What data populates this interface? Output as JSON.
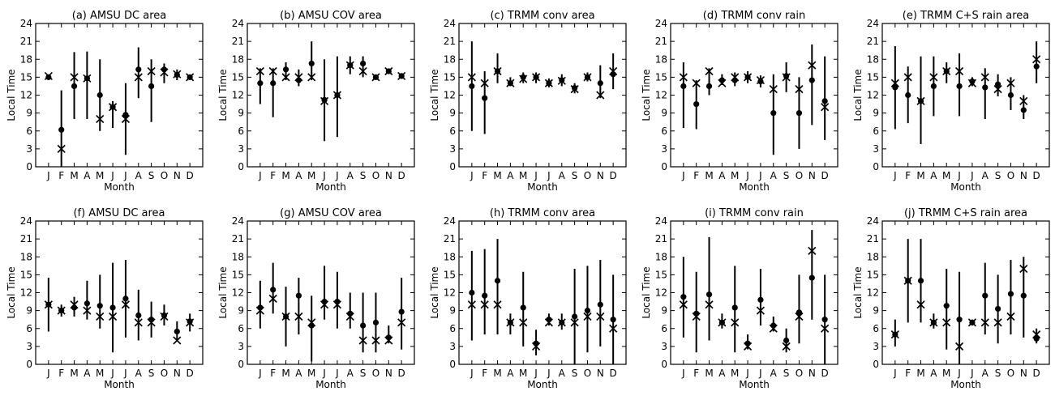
{
  "figure": {
    "panel_count": 10,
    "layout": "2 rows x 5 columns"
  },
  "chart_data": [
    {
      "type": "scatter",
      "title": "(a) AMSU DC area",
      "xlabel": "Month",
      "ylabel": "Local Time",
      "categories": [
        "J",
        "F",
        "M",
        "A",
        "M",
        "J",
        "J",
        "A",
        "S",
        "O",
        "N",
        "D"
      ],
      "ylim": [
        0,
        24
      ],
      "yticks": [
        0,
        3,
        6,
        9,
        12,
        15,
        18,
        21,
        24
      ],
      "series": [
        {
          "marker": "dot",
          "values": [
            15,
            6.2,
            13.5,
            14.8,
            12,
            10,
            8.7,
            16.3,
            13.5,
            16.3,
            15.4,
            15
          ],
          "low": [
            null,
            0,
            8,
            8,
            6,
            6.5,
            2,
            11.5,
            7.5,
            14,
            14.5,
            null
          ],
          "high": [
            null,
            12.8,
            19.2,
            19.3,
            18,
            11,
            14,
            20,
            18,
            17.3,
            16.3,
            null
          ]
        },
        {
          "marker": "x",
          "values": [
            15.2,
            3,
            15,
            14.8,
            8,
            10,
            8,
            15,
            16,
            15.8,
            15.5,
            15
          ]
        }
      ]
    },
    {
      "type": "scatter",
      "title": "(b) AMSU COV area",
      "xlabel": "Month",
      "ylabel": "Local Time",
      "categories": [
        "J",
        "F",
        "M",
        "A",
        "M",
        "J",
        "J",
        "A",
        "S",
        "O",
        "N",
        "D"
      ],
      "ylim": [
        0,
        24
      ],
      "yticks": [
        0,
        3,
        6,
        9,
        12,
        15,
        18,
        21,
        24
      ],
      "series": [
        {
          "marker": "dot",
          "values": [
            14,
            14,
            16.3,
            14.5,
            17.3,
            11.2,
            12,
            17,
            17.3,
            15,
            16,
            15.2
          ],
          "low": [
            10.5,
            8.3,
            14.5,
            13.5,
            14.5,
            4.3,
            5,
            15.5,
            15,
            null,
            null,
            null
          ],
          "high": [
            16.5,
            16.5,
            17.5,
            16.3,
            21,
            18,
            18.5,
            18.5,
            18.5,
            null,
            null,
            null
          ]
        },
        {
          "marker": "x",
          "values": [
            16,
            16,
            15,
            15,
            15,
            11,
            12,
            17,
            16,
            15,
            16,
            15.2
          ]
        }
      ]
    },
    {
      "type": "scatter",
      "title": "(c) TRMM conv area",
      "xlabel": "Month",
      "ylabel": "Local Time",
      "categories": [
        "J",
        "F",
        "M",
        "A",
        "M",
        "J",
        "J",
        "A",
        "S",
        "O",
        "N",
        "D"
      ],
      "ylim": [
        0,
        24
      ],
      "yticks": [
        0,
        3,
        6,
        9,
        12,
        15,
        18,
        21,
        24
      ],
      "series": [
        {
          "marker": "dot",
          "values": [
            13.5,
            11.5,
            16,
            14,
            15,
            15,
            14,
            14.5,
            13.2,
            15,
            14,
            15.5
          ],
          "low": [
            6,
            5.5,
            14,
            13.5,
            14,
            14,
            13.3,
            13.5,
            12.3,
            14.3,
            11.5,
            13
          ],
          "high": [
            21,
            16,
            19,
            15,
            15.8,
            15.8,
            14.8,
            15.5,
            14,
            15.8,
            17,
            19
          ]
        },
        {
          "marker": "x",
          "values": [
            15,
            14,
            16,
            14,
            14.7,
            15,
            14,
            14.4,
            13,
            15,
            12,
            16
          ]
        }
      ]
    },
    {
      "type": "scatter",
      "title": "(d) TRMM conv rain",
      "xlabel": "Month",
      "ylabel": "Local Time",
      "categories": [
        "J",
        "F",
        "M",
        "A",
        "M",
        "J",
        "J",
        "A",
        "S",
        "O",
        "N",
        "D"
      ],
      "ylim": [
        0,
        24
      ],
      "yticks": [
        0,
        3,
        6,
        9,
        12,
        15,
        18,
        21,
        24
      ],
      "series": [
        {
          "marker": "dot",
          "values": [
            13.5,
            10.5,
            13.5,
            14.5,
            14.5,
            15,
            14.3,
            9,
            15.2,
            9,
            14.5,
            11
          ],
          "low": [
            6.5,
            6.3,
            12,
            13.7,
            13.5,
            14,
            13.3,
            2,
            12.5,
            3,
            7,
            4.5
          ],
          "high": [
            17.5,
            14.5,
            16.5,
            15.5,
            15.8,
            16,
            15.3,
            15.5,
            17.5,
            15,
            20.5,
            18.5
          ]
        },
        {
          "marker": "x",
          "values": [
            15,
            14,
            16,
            14,
            15,
            15,
            14.5,
            13,
            15,
            13,
            17,
            10
          ]
        }
      ]
    },
    {
      "type": "scatter",
      "title": "(e) TRMM C+S rain area",
      "xlabel": "Month",
      "ylabel": "Local Time",
      "categories": [
        "J",
        "F",
        "M",
        "A",
        "M",
        "J",
        "J",
        "A",
        "S",
        "O",
        "N",
        "D"
      ],
      "ylim": [
        0,
        24
      ],
      "yticks": [
        0,
        3,
        6,
        9,
        12,
        15,
        18,
        21,
        24
      ],
      "series": [
        {
          "marker": "dot",
          "values": [
            13.3,
            12,
            11,
            13.5,
            16,
            13.5,
            14.3,
            13.3,
            13.8,
            12,
            9.5,
            16.8
          ],
          "low": [
            6.3,
            7.3,
            3.8,
            8.5,
            14,
            8.5,
            13.5,
            8,
            11.8,
            9.5,
            8,
            14
          ],
          "high": [
            20.2,
            16.8,
            18.5,
            18.5,
            17.5,
            19,
            15,
            16.5,
            15.5,
            15,
            12,
            21
          ]
        },
        {
          "marker": "x",
          "values": [
            14,
            15,
            11,
            15,
            16,
            16,
            14,
            15,
            13,
            14,
            11,
            18
          ]
        }
      ]
    },
    {
      "type": "scatter",
      "title": "(f) AMSU DC area",
      "xlabel": "Month",
      "ylabel": "Local Time",
      "categories": [
        "J",
        "F",
        "M",
        "A",
        "M",
        "J",
        "J",
        "A",
        "S",
        "O",
        "N",
        "D"
      ],
      "ylim": [
        0,
        24
      ],
      "yticks": [
        0,
        3,
        6,
        9,
        12,
        15,
        18,
        21,
        24
      ],
      "series": [
        {
          "marker": "dot",
          "values": [
            10,
            9,
            9.5,
            10.2,
            9.8,
            9.5,
            11,
            8.2,
            7.5,
            8.2,
            5.5,
            7.2
          ],
          "low": [
            5.5,
            8,
            8,
            7.5,
            6,
            2,
            4.5,
            4,
            4.5,
            6.5,
            4,
            5.5
          ],
          "high": [
            14.5,
            10,
            11.3,
            14,
            15,
            17,
            17.5,
            12.5,
            10.5,
            10,
            7.2,
            8.5
          ]
        },
        {
          "marker": "x",
          "values": [
            10,
            9,
            10,
            9,
            8,
            8,
            10,
            7,
            7,
            8,
            4,
            7
          ]
        }
      ]
    },
    {
      "type": "scatter",
      "title": "(g) AMSU COV area",
      "xlabel": "Month",
      "ylabel": "Local Time",
      "categories": [
        "J",
        "F",
        "M",
        "A",
        "M",
        "J",
        "J",
        "A",
        "S",
        "O",
        "N",
        "D"
      ],
      "ylim": [
        0,
        24
      ],
      "yticks": [
        0,
        3,
        6,
        9,
        12,
        15,
        18,
        21,
        24
      ],
      "series": [
        {
          "marker": "dot",
          "values": [
            9.5,
            12.5,
            8,
            11.5,
            6.5,
            10.5,
            10.5,
            8.5,
            6.5,
            7,
            4.5,
            8.8
          ],
          "low": [
            6,
            8.5,
            3,
            5,
            0.5,
            7.5,
            6,
            6,
            2,
            2,
            3.5,
            2.5
          ],
          "high": [
            14,
            17,
            13,
            14.5,
            11.5,
            16.5,
            15.5,
            12,
            12,
            12,
            6.5,
            14.5
          ]
        },
        {
          "marker": "x",
          "values": [
            9,
            11,
            8,
            8,
            7,
            10,
            10,
            8,
            4,
            4,
            4,
            7
          ]
        }
      ]
    },
    {
      "type": "scatter",
      "title": "(h) TRMM conv area",
      "xlabel": "Month",
      "ylabel": "Local Time",
      "categories": [
        "J",
        "F",
        "M",
        "A",
        "M",
        "J",
        "J",
        "A",
        "S",
        "O",
        "N",
        "D"
      ],
      "ylim": [
        0,
        24
      ],
      "yticks": [
        0,
        3,
        6,
        9,
        12,
        15,
        18,
        21,
        24
      ],
      "series": [
        {
          "marker": "dot",
          "values": [
            12,
            11.5,
            14,
            7,
            9.5,
            3.5,
            7.5,
            7,
            8,
            9,
            10,
            7.5
          ],
          "low": [
            4,
            5,
            5,
            5,
            3,
            1.5,
            6.5,
            5.8,
            0,
            2,
            3,
            0
          ],
          "high": [
            19,
            19.3,
            21,
            8.5,
            15.5,
            5.8,
            8.5,
            8.5,
            16,
            16.5,
            17.5,
            15
          ]
        },
        {
          "marker": "x",
          "values": [
            10,
            10,
            10,
            7,
            7,
            3,
            7,
            7,
            7,
            8,
            8,
            6
          ]
        }
      ]
    },
    {
      "type": "scatter",
      "title": "(i) TRMM conv rain",
      "xlabel": "Month",
      "ylabel": "Local Time",
      "categories": [
        "J",
        "F",
        "M",
        "A",
        "M",
        "J",
        "J",
        "A",
        "S",
        "O",
        "N",
        "D"
      ],
      "ylim": [
        0,
        24
      ],
      "yticks": [
        0,
        3,
        6,
        9,
        12,
        15,
        18,
        21,
        24
      ],
      "series": [
        {
          "marker": "dot",
          "values": [
            11.3,
            8.5,
            11.7,
            7,
            9.5,
            3.5,
            10.8,
            6.5,
            4,
            8.7,
            14.5,
            7.5
          ],
          "low": [
            4.5,
            2,
            4,
            6,
            2,
            2.5,
            6.5,
            5.5,
            2,
            3.5,
            7.5,
            0
          ],
          "high": [
            18,
            15.5,
            21.3,
            8.5,
            16.5,
            5,
            16,
            8,
            6,
            15,
            22.5,
            15
          ]
        },
        {
          "marker": "x",
          "values": [
            10,
            8,
            10,
            7,
            7,
            3,
            9,
            6,
            3,
            8,
            19,
            6
          ]
        }
      ]
    },
    {
      "type": "scatter",
      "title": "(j) TRMM C+S rain area",
      "xlabel": "Month",
      "ylabel": "Local Time",
      "categories": [
        "J",
        "F",
        "M",
        "A",
        "M",
        "J",
        "J",
        "A",
        "S",
        "O",
        "N",
        "D"
      ],
      "ylim": [
        0,
        24
      ],
      "yticks": [
        0,
        3,
        6,
        9,
        12,
        15,
        18,
        21,
        24
      ],
      "series": [
        {
          "marker": "dot",
          "values": [
            5,
            14,
            14,
            7,
            9.8,
            7.5,
            7,
            11.5,
            9.3,
            11.8,
            11.5,
            4.3
          ],
          "low": [
            3,
            7,
            7,
            6,
            2.5,
            0,
            6.5,
            5,
            3.5,
            5,
            4.5,
            3.5
          ],
          "high": [
            7.5,
            21,
            21,
            8.5,
            16,
            15.5,
            7.5,
            17,
            15,
            17.5,
            18,
            6
          ]
        },
        {
          "marker": "x",
          "values": [
            5,
            14,
            10,
            7,
            7,
            3,
            7,
            7,
            7,
            8,
            16,
            5
          ]
        }
      ]
    }
  ]
}
